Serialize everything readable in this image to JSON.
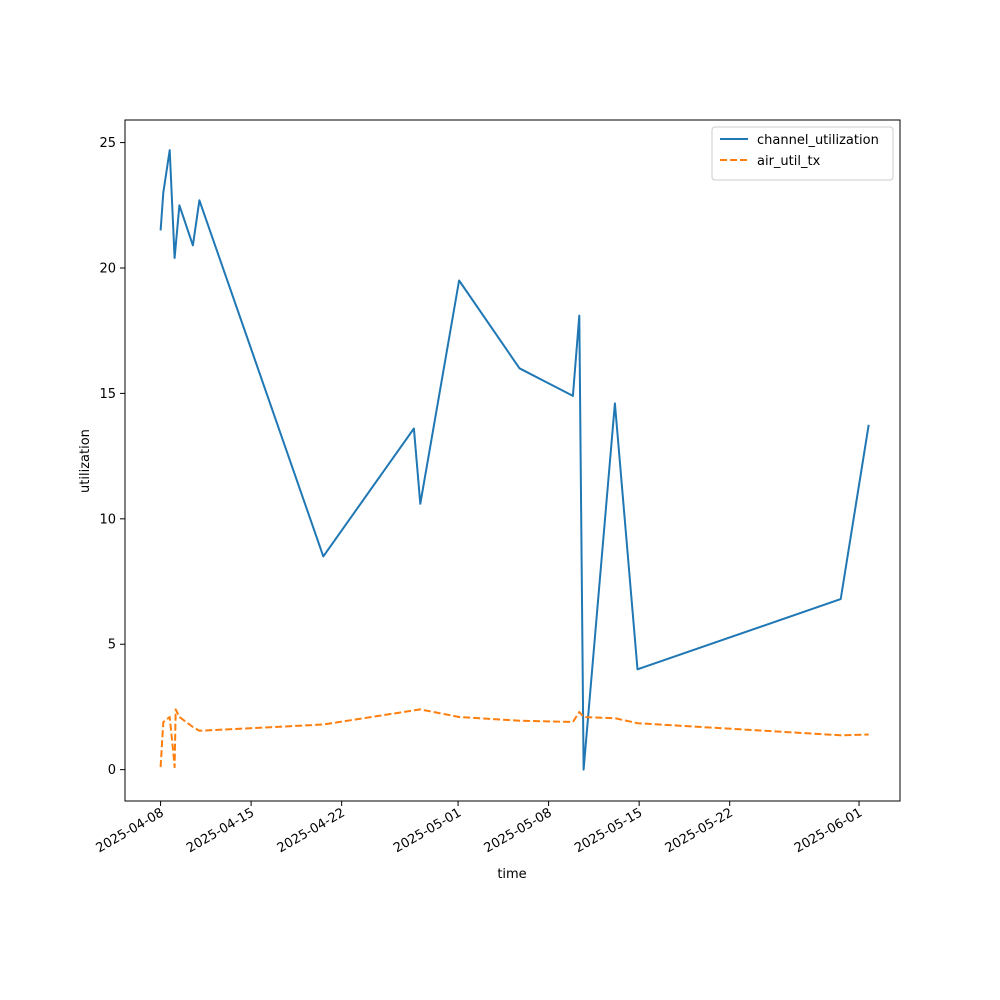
{
  "chart_data": {
    "type": "line",
    "title": "",
    "xlabel": "time",
    "ylabel": "utilization",
    "x_type": "datetime",
    "xlim": [
      "2025-04-05T06:00",
      "2025-06-04T04:00"
    ],
    "ylim": [
      -1.25,
      25.9
    ],
    "x_ticks": [
      "2025-04-08",
      "2025-04-15",
      "2025-04-22",
      "2025-05-01",
      "2025-05-08",
      "2025-05-15",
      "2025-05-22",
      "2025-06-01"
    ],
    "y_ticks": [
      0,
      5,
      10,
      15,
      20,
      25
    ],
    "grid": false,
    "legend_position": "top-right",
    "series": [
      {
        "name": "channel_utilization",
        "color": "#1f77b4",
        "style": "solid",
        "points": [
          [
            "2025-04-08T00:00",
            21.5
          ],
          [
            "2025-04-08T05:00",
            23.0
          ],
          [
            "2025-04-08T17:00",
            24.7
          ],
          [
            "2025-04-09T02:00",
            20.4
          ],
          [
            "2025-04-09T11:00",
            22.5
          ],
          [
            "2025-04-10T12:00",
            20.9
          ],
          [
            "2025-04-11T00:00",
            22.7
          ],
          [
            "2025-04-20T14:00",
            8.5
          ],
          [
            "2025-04-27T14:00",
            13.6
          ],
          [
            "2025-04-28T02:00",
            10.6
          ],
          [
            "2025-05-01T02:00",
            19.5
          ],
          [
            "2025-05-05T18:00",
            16.0
          ],
          [
            "2025-05-09T21:00",
            14.9
          ],
          [
            "2025-05-10T09:00",
            18.1
          ],
          [
            "2025-05-10T17:00",
            0.0
          ],
          [
            "2025-05-13T03:00",
            14.6
          ],
          [
            "2025-05-14T21:00",
            4.0
          ],
          [
            "2025-05-30T14:00",
            6.8
          ],
          [
            "2025-06-01T18:00",
            13.75
          ]
        ]
      },
      {
        "name": "air_util_tx",
        "color": "#ff7f0e",
        "style": "dashed",
        "points": [
          [
            "2025-04-08T00:00",
            0.1
          ],
          [
            "2025-04-08T05:00",
            1.9
          ],
          [
            "2025-04-08T17:00",
            2.1
          ],
          [
            "2025-04-09T00:00",
            0.6
          ],
          [
            "2025-04-09T02:00",
            0.1
          ],
          [
            "2025-04-09T04:00",
            2.4
          ],
          [
            "2025-04-09T11:00",
            2.1
          ],
          [
            "2025-04-10T12:00",
            1.7
          ],
          [
            "2025-04-11T00:00",
            1.55
          ],
          [
            "2025-04-20T14:00",
            1.8
          ],
          [
            "2025-04-28T02:00",
            2.4
          ],
          [
            "2025-05-01T02:00",
            2.1
          ],
          [
            "2025-05-05T18:00",
            1.95
          ],
          [
            "2025-05-09T21:00",
            1.9
          ],
          [
            "2025-05-10T09:00",
            2.3
          ],
          [
            "2025-05-10T17:00",
            2.1
          ],
          [
            "2025-05-13T03:00",
            2.05
          ],
          [
            "2025-05-14T21:00",
            1.85
          ],
          [
            "2025-05-30T14:00",
            1.37
          ],
          [
            "2025-06-01T18:00",
            1.4
          ]
        ]
      }
    ]
  }
}
